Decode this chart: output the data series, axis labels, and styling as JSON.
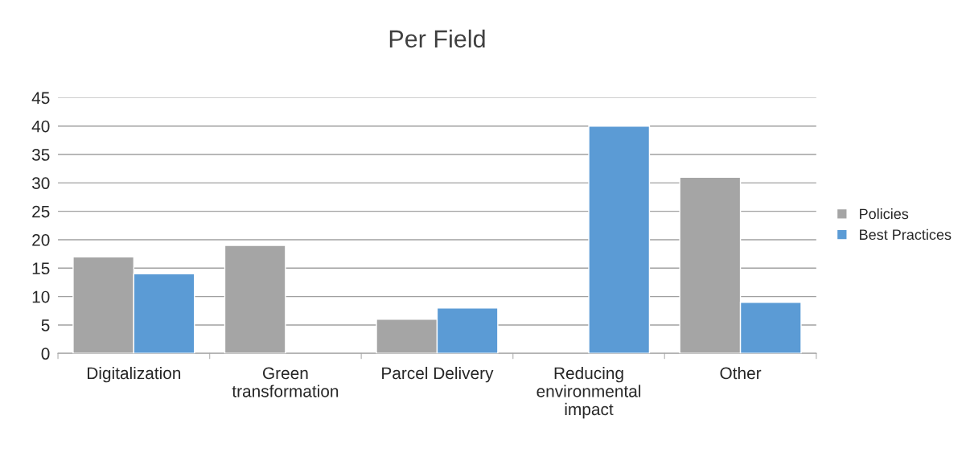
{
  "chart_data": {
    "type": "bar",
    "title": "Per Field",
    "categories": [
      "Digitalization",
      "Green\ntransformation",
      "Parcel Delivery",
      "Reducing\nenvironmental\nimpact",
      "Other"
    ],
    "series": [
      {
        "name": "Policies",
        "color": "#a5a5a5",
        "values": [
          17,
          19,
          6,
          null,
          31
        ]
      },
      {
        "name": "Best Practices",
        "color": "#5b9bd5",
        "values": [
          14,
          null,
          8,
          40,
          9
        ]
      }
    ],
    "ylim": [
      0,
      45
    ],
    "yticks": [
      0,
      5,
      10,
      15,
      20,
      25,
      30,
      35,
      40,
      45
    ],
    "grid": "y",
    "legend": "right"
  }
}
